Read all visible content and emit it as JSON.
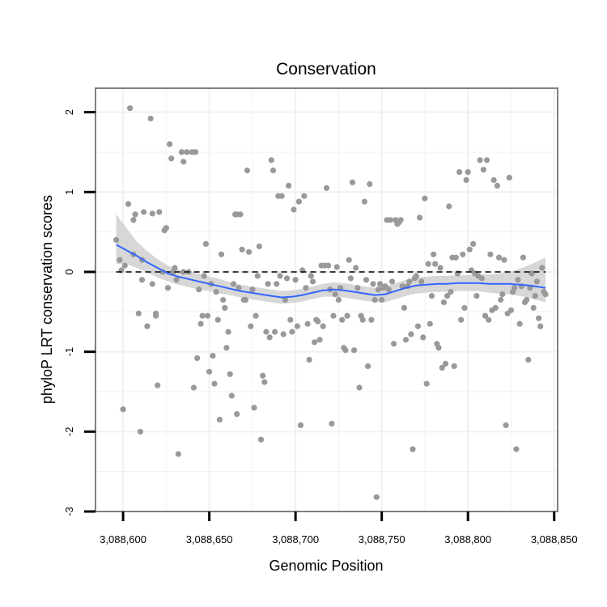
{
  "chart_data": {
    "type": "scatter",
    "title": "Conservation",
    "xlabel": "Genomic Position",
    "ylabel": "phyloP LRT conservation scores",
    "xlim": [
      3088584,
      3088852
    ],
    "ylim": [
      -3,
      2.3
    ],
    "x_ticks": [
      3088600,
      3088650,
      3088700,
      3088750,
      3088800,
      3088850
    ],
    "x_tick_labels": [
      "3,088,600",
      "3,088,650",
      "3,088,700",
      "3,088,750",
      "3,088,800",
      "3,088,850"
    ],
    "y_ticks": [
      -3,
      -2,
      -1,
      0,
      1,
      2
    ],
    "y_tick_labels": [
      "-3",
      "-2",
      "-1",
      "0",
      "1",
      "2"
    ],
    "reference_line": {
      "y": 0,
      "style": "dashed",
      "color": "#000000"
    },
    "points_color": "#999999",
    "smooth_color": "#3366FF",
    "band_color": "#d3d3d3",
    "grid": true,
    "points": [
      [
        3088596,
        0.4
      ],
      [
        3088598,
        0.15
      ],
      [
        3088599,
        0.02
      ],
      [
        3088600,
        -1.72
      ],
      [
        3088601,
        0.08
      ],
      [
        3088603,
        0.85
      ],
      [
        3088604,
        2.05
      ],
      [
        3088606,
        0.65
      ],
      [
        3088606,
        0.22
      ],
      [
        3088607,
        0.72
      ],
      [
        3088609,
        -0.52
      ],
      [
        3088610,
        -2.0
      ],
      [
        3088611,
        0.15
      ],
      [
        3088611,
        -0.1
      ],
      [
        3088612,
        0.75
      ],
      [
        3088614,
        -0.68
      ],
      [
        3088616,
        1.92
      ],
      [
        3088617,
        -0.15
      ],
      [
        3088617,
        0.73
      ],
      [
        3088619,
        -0.52
      ],
      [
        3088619,
        -0.55
      ],
      [
        3088620,
        -1.42
      ],
      [
        3088621,
        0.75
      ],
      [
        3088623,
        0.0
      ],
      [
        3088624,
        0.52
      ],
      [
        3088625,
        0.55
      ],
      [
        3088626,
        -0.2
      ],
      [
        3088627,
        1.6
      ],
      [
        3088628,
        1.42
      ],
      [
        3088629,
        0.0
      ],
      [
        3088630,
        0.05
      ],
      [
        3088631,
        -0.1
      ],
      [
        3088632,
        -2.28
      ],
      [
        3088634,
        1.5
      ],
      [
        3088635,
        1.38
      ],
      [
        3088635,
        0.0
      ],
      [
        3088637,
        1.5
      ],
      [
        3088638,
        0.0
      ],
      [
        3088640,
        1.5
      ],
      [
        3088641,
        -1.45
      ],
      [
        3088642,
        1.5
      ],
      [
        3088643,
        -1.08
      ],
      [
        3088644,
        -0.22
      ],
      [
        3088645,
        -0.65
      ],
      [
        3088646,
        -0.55
      ],
      [
        3088647,
        -0.05
      ],
      [
        3088648,
        0.35
      ],
      [
        3088649,
        -0.55
      ],
      [
        3088650,
        -1.25
      ],
      [
        3088651,
        -0.15
      ],
      [
        3088652,
        -1.05
      ],
      [
        3088653,
        -1.4
      ],
      [
        3088654,
        -0.25
      ],
      [
        3088655,
        -0.6
      ],
      [
        3088656,
        -1.85
      ],
      [
        3088657,
        0.22
      ],
      [
        3088658,
        -0.35
      ],
      [
        3088659,
        -0.45
      ],
      [
        3088660,
        -0.95
      ],
      [
        3088661,
        -0.75
      ],
      [
        3088662,
        -1.28
      ],
      [
        3088663,
        -1.55
      ],
      [
        3088664,
        -0.15
      ],
      [
        3088665,
        0.72
      ],
      [
        3088666,
        -1.78
      ],
      [
        3088666,
        0.72
      ],
      [
        3088667,
        -0.2
      ],
      [
        3088668,
        0.72
      ],
      [
        3088669,
        0.28
      ],
      [
        3088670,
        -0.35
      ],
      [
        3088671,
        -0.35
      ],
      [
        3088672,
        1.27
      ],
      [
        3088673,
        0.25
      ],
      [
        3088674,
        -0.68
      ],
      [
        3088675,
        -0.22
      ],
      [
        3088676,
        -1.7
      ],
      [
        3088677,
        -0.55
      ],
      [
        3088678,
        -0.05
      ],
      [
        3088679,
        0.32
      ],
      [
        3088680,
        -2.1
      ],
      [
        3088681,
        -1.3
      ],
      [
        3088682,
        -1.38
      ],
      [
        3088683,
        -0.75
      ],
      [
        3088684,
        -0.15
      ],
      [
        3088685,
        -0.82
      ],
      [
        3088686,
        1.4
      ],
      [
        3088687,
        1.27
      ],
      [
        3088688,
        -0.75
      ],
      [
        3088689,
        -0.15
      ],
      [
        3088690,
        0.95
      ],
      [
        3088691,
        -0.05
      ],
      [
        3088692,
        0.95
      ],
      [
        3088693,
        -0.78
      ],
      [
        3088694,
        -0.35
      ],
      [
        3088695,
        -0.08
      ],
      [
        3088696,
        1.08
      ],
      [
        3088697,
        -0.6
      ],
      [
        3088698,
        -0.75
      ],
      [
        3088699,
        0.78
      ],
      [
        3088700,
        -0.1
      ],
      [
        3088701,
        -0.68
      ],
      [
        3088702,
        0.88
      ],
      [
        3088703,
        -1.92
      ],
      [
        3088704,
        0.02
      ],
      [
        3088705,
        0.95
      ],
      [
        3088706,
        -0.2
      ],
      [
        3088707,
        -0.65
      ],
      [
        3088708,
        -1.1
      ],
      [
        3088709,
        -0.05
      ],
      [
        3088710,
        -0.12
      ],
      [
        3088711,
        -0.88
      ],
      [
        3088712,
        -0.6
      ],
      [
        3088713,
        -0.62
      ],
      [
        3088714,
        -0.85
      ],
      [
        3088715,
        0.08
      ],
      [
        3088716,
        -0.68
      ],
      [
        3088717,
        0.08
      ],
      [
        3088718,
        1.05
      ],
      [
        3088719,
        0.08
      ],
      [
        3088720,
        -0.22
      ],
      [
        3088721,
        -1.9
      ],
      [
        3088722,
        -0.55
      ],
      [
        3088723,
        -0.28
      ],
      [
        3088724,
        0.06
      ],
      [
        3088725,
        -0.35
      ],
      [
        3088726,
        -0.2
      ],
      [
        3088727,
        -0.6
      ],
      [
        3088728,
        -0.95
      ],
      [
        3088729,
        -0.98
      ],
      [
        3088730,
        -0.55
      ],
      [
        3088731,
        0.15
      ],
      [
        3088732,
        -0.08
      ],
      [
        3088733,
        1.12
      ],
      [
        3088734,
        -0.98
      ],
      [
        3088735,
        0.05
      ],
      [
        3088736,
        -0.2
      ],
      [
        3088737,
        -1.45
      ],
      [
        3088738,
        -0.55
      ],
      [
        3088739,
        -0.6
      ],
      [
        3088740,
        0.88
      ],
      [
        3088741,
        -0.1
      ],
      [
        3088742,
        -1.18
      ],
      [
        3088743,
        1.1
      ],
      [
        3088744,
        -0.6
      ],
      [
        3088745,
        -0.15
      ],
      [
        3088746,
        -0.35
      ],
      [
        3088747,
        -2.82
      ],
      [
        3088748,
        -0.22
      ],
      [
        3088749,
        -0.15
      ],
      [
        3088750,
        -0.35
      ],
      [
        3088751,
        -0.2
      ],
      [
        3088752,
        -0.18
      ],
      [
        3088753,
        0.65
      ],
      [
        3088754,
        -0.22
      ],
      [
        3088755,
        0.65
      ],
      [
        3088756,
        -0.12
      ],
      [
        3088757,
        -0.9
      ],
      [
        3088758,
        0.65
      ],
      [
        3088759,
        0.6
      ],
      [
        3088760,
        0.62
      ],
      [
        3088761,
        0.65
      ],
      [
        3088762,
        -0.18
      ],
      [
        3088763,
        -0.45
      ],
      [
        3088764,
        -0.85
      ],
      [
        3088765,
        -0.18
      ],
      [
        3088766,
        -0.12
      ],
      [
        3088767,
        -0.78
      ],
      [
        3088768,
        -2.22
      ],
      [
        3088769,
        -0.08
      ],
      [
        3088770,
        -0.05
      ],
      [
        3088771,
        -0.68
      ],
      [
        3088772,
        0.68
      ],
      [
        3088773,
        -0.12
      ],
      [
        3088774,
        -0.82
      ],
      [
        3088775,
        0.92
      ],
      [
        3088776,
        -1.4
      ],
      [
        3088777,
        0.1
      ],
      [
        3088778,
        -0.65
      ],
      [
        3088779,
        -0.3
      ],
      [
        3088780,
        0.22
      ],
      [
        3088781,
        0.1
      ],
      [
        3088782,
        -0.9
      ],
      [
        3088783,
        -0.95
      ],
      [
        3088784,
        0.05
      ],
      [
        3088785,
        -1.2
      ],
      [
        3088786,
        -0.38
      ],
      [
        3088787,
        -1.15
      ],
      [
        3088788,
        -0.3
      ],
      [
        3088789,
        0.82
      ],
      [
        3088790,
        -0.25
      ],
      [
        3088791,
        0.18
      ],
      [
        3088792,
        -1.18
      ],
      [
        3088793,
        0.18
      ],
      [
        3088794,
        -0.02
      ],
      [
        3088795,
        1.25
      ],
      [
        3088796,
        -0.6
      ],
      [
        3088797,
        0.22
      ],
      [
        3088798,
        -0.45
      ],
      [
        3088799,
        1.15
      ],
      [
        3088800,
        1.25
      ],
      [
        3088801,
        0.28
      ],
      [
        3088802,
        0.02
      ],
      [
        3088803,
        0.35
      ],
      [
        3088804,
        -0.02
      ],
      [
        3088805,
        -0.3
      ],
      [
        3088806,
        -0.05
      ],
      [
        3088807,
        1.4
      ],
      [
        3088808,
        -0.08
      ],
      [
        3088809,
        1.28
      ],
      [
        3088810,
        -0.55
      ],
      [
        3088811,
        1.4
      ],
      [
        3088812,
        -0.6
      ],
      [
        3088813,
        0.22
      ],
      [
        3088814,
        -0.48
      ],
      [
        3088815,
        1.15
      ],
      [
        3088816,
        -0.45
      ],
      [
        3088817,
        1.08
      ],
      [
        3088818,
        0.18
      ],
      [
        3088819,
        -0.35
      ],
      [
        3088820,
        -0.28
      ],
      [
        3088821,
        0.15
      ],
      [
        3088822,
        -1.92
      ],
      [
        3088823,
        -0.52
      ],
      [
        3088824,
        1.18
      ],
      [
        3088825,
        -0.48
      ],
      [
        3088826,
        -0.25
      ],
      [
        3088827,
        -0.2
      ],
      [
        3088828,
        -2.22
      ],
      [
        3088829,
        -0.1
      ],
      [
        3088830,
        -0.65
      ],
      [
        3088831,
        -0.18
      ],
      [
        3088832,
        0.18
      ],
      [
        3088833,
        -0.38
      ],
      [
        3088834,
        -0.35
      ],
      [
        3088835,
        -1.1
      ],
      [
        3088836,
        -0.2
      ],
      [
        3088837,
        -0.02
      ],
      [
        3088838,
        -0.45
      ],
      [
        3088839,
        -0.3
      ],
      [
        3088840,
        -0.12
      ],
      [
        3088841,
        -0.58
      ],
      [
        3088842,
        -0.68
      ],
      [
        3088843,
        0.05
      ],
      [
        3088844,
        -0.25
      ],
      [
        3088845,
        -0.28
      ]
    ],
    "smooth_line": {
      "x": [
        3088596,
        3088602,
        3088608,
        3088614,
        3088620,
        3088626,
        3088632,
        3088638,
        3088644,
        3088650,
        3088656,
        3088662,
        3088668,
        3088674,
        3088680,
        3088686,
        3088692,
        3088698,
        3088704,
        3088710,
        3088716,
        3088722,
        3088728,
        3088734,
        3088740,
        3088746,
        3088752,
        3088758,
        3088764,
        3088770,
        3088776,
        3088782,
        3088788,
        3088794,
        3088800,
        3088806,
        3088812,
        3088818,
        3088824,
        3088830,
        3088836,
        3088845
      ],
      "y": [
        0.34,
        0.27,
        0.2,
        0.12,
        0.05,
        -0.02,
        -0.06,
        -0.09,
        -0.12,
        -0.15,
        -0.18,
        -0.21,
        -0.24,
        -0.26,
        -0.28,
        -0.3,
        -0.32,
        -0.31,
        -0.29,
        -0.26,
        -0.23,
        -0.22,
        -0.23,
        -0.25,
        -0.27,
        -0.29,
        -0.28,
        -0.24,
        -0.2,
        -0.17,
        -0.16,
        -0.15,
        -0.15,
        -0.14,
        -0.14,
        -0.14,
        -0.15,
        -0.15,
        -0.15,
        -0.16,
        -0.17,
        -0.2
      ],
      "lower": [
        0.1,
        0.1,
        0.05,
        -0.01,
        -0.07,
        -0.12,
        -0.16,
        -0.19,
        -0.22,
        -0.24,
        -0.27,
        -0.29,
        -0.32,
        -0.34,
        -0.36,
        -0.38,
        -0.4,
        -0.39,
        -0.37,
        -0.34,
        -0.31,
        -0.31,
        -0.32,
        -0.34,
        -0.36,
        -0.38,
        -0.38,
        -0.34,
        -0.3,
        -0.27,
        -0.26,
        -0.25,
        -0.25,
        -0.24,
        -0.24,
        -0.24,
        -0.26,
        -0.27,
        -0.28,
        -0.3,
        -0.33,
        -0.38
      ],
      "upper": [
        0.72,
        0.55,
        0.38,
        0.26,
        0.16,
        0.08,
        0.03,
        0.0,
        -0.02,
        -0.06,
        -0.09,
        -0.13,
        -0.16,
        -0.18,
        -0.2,
        -0.22,
        -0.24,
        -0.23,
        -0.21,
        -0.18,
        -0.15,
        -0.13,
        -0.14,
        -0.16,
        -0.18,
        -0.2,
        -0.18,
        -0.14,
        -0.1,
        -0.07,
        -0.06,
        -0.05,
        -0.05,
        -0.04,
        -0.04,
        -0.03,
        -0.03,
        -0.02,
        0.0,
        0.04,
        0.09,
        0.18
      ]
    }
  }
}
